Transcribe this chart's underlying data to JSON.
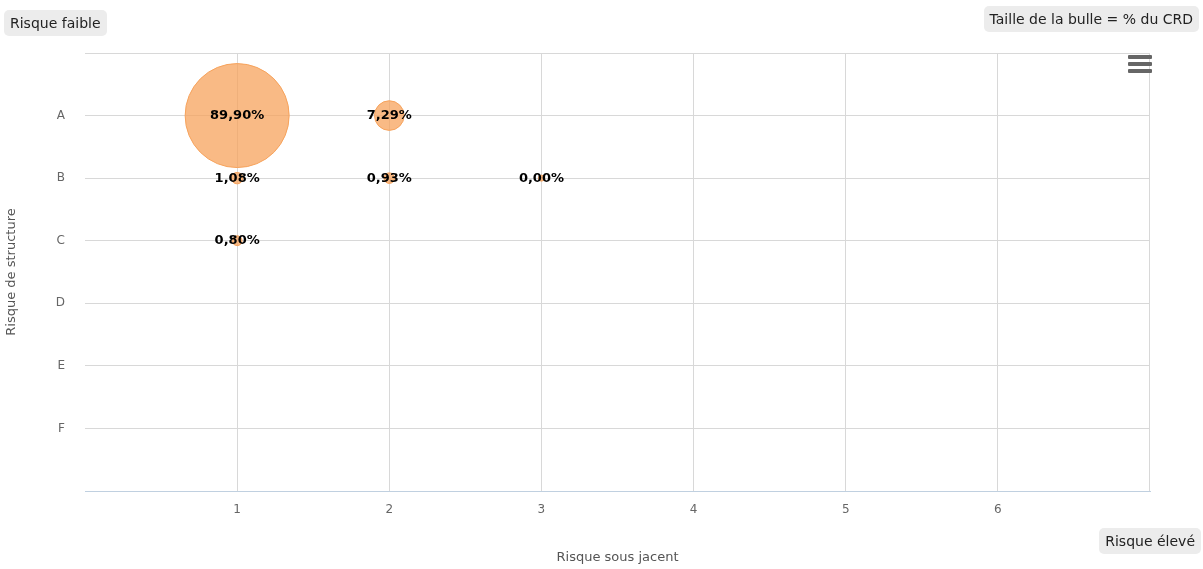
{
  "chart_data": {
    "type": "bubble",
    "orientation": "horizontal",
    "xlabel": "Risque sous jacent",
    "ylabel": "Risque de structure",
    "annotations": [
      "Risque faible",
      "Taille de la bulle = % du CRD",
      "Risque élevé",
      {
        "text": "89,90%",
        "x": 1,
        "y": "A"
      },
      {
        "text": "7,29%",
        "x": 2,
        "y": "A"
      },
      {
        "text": "1,08%",
        "x": 1,
        "y": "B"
      },
      {
        "text": "0,93%",
        "x": 2,
        "y": "B"
      },
      {
        "text": "0,00%",
        "x": 3,
        "y": "B"
      },
      {
        "text": "0,80%",
        "x": 1,
        "y": "C"
      }
    ],
    "categories": [
      "A",
      "B",
      "C",
      "D",
      "E",
      "F"
    ],
    "series": [
      {
        "color": "#f7a35c",
        "values": [
          1,
          1,
          1,
          null,
          null,
          null
        ],
        "sizes": [
          1,
          0.012,
          0.0089,
          null,
          null,
          null
        ]
      },
      {
        "color": "#f7a35c",
        "values": [
          2,
          2,
          null,
          null,
          null,
          null
        ],
        "sizes": [
          0.0811,
          0.0103,
          null,
          null,
          null,
          null
        ]
      },
      {
        "color": "#f7a35c",
        "values": [
          null,
          3,
          null,
          null,
          null,
          null
        ],
        "sizes": [
          null,
          null,
          null,
          null,
          null,
          null
        ]
      }
    ],
    "xlim": [
      0,
      7
    ],
    "xticks": [
      1,
      2,
      3,
      4,
      5,
      6
    ],
    "grid": true,
    "legend": false
  }
}
